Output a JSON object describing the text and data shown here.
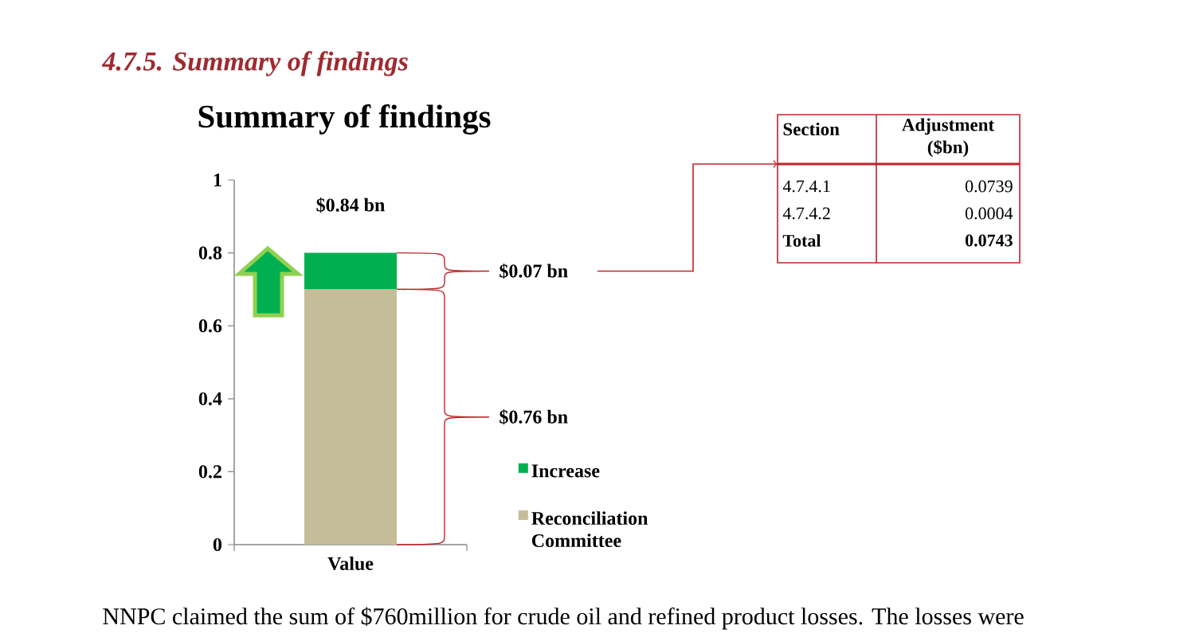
{
  "chart_data": {
    "type": "bar",
    "stacked": true,
    "title": "Summary of findings",
    "categories": [
      "Value"
    ],
    "series": [
      {
        "name": "Reconciliation Committee",
        "color": "#c4bd97",
        "values": [
          0.7
        ]
      },
      {
        "name": "Increase",
        "color": "#00b050",
        "values": [
          0.1
        ]
      }
    ],
    "ylim": [
      0,
      1
    ],
    "yticks": [
      0,
      0.2,
      0.4,
      0.6,
      0.8,
      1
    ],
    "legend": "right",
    "annotations": [
      "4.7.5. Summary of findings",
      "$0.84 bn",
      "$0.07 bn",
      "$0.76 bn",
      "Section",
      "Adjustment ($bn)",
      "4.7.4.1",
      "0.0739",
      "4.7.4.2",
      "0.0004",
      "Total",
      "0.0743",
      "NNPC claimed the sum of $760million for crude oil and refined product losses. The losses were"
    ]
  }
}
